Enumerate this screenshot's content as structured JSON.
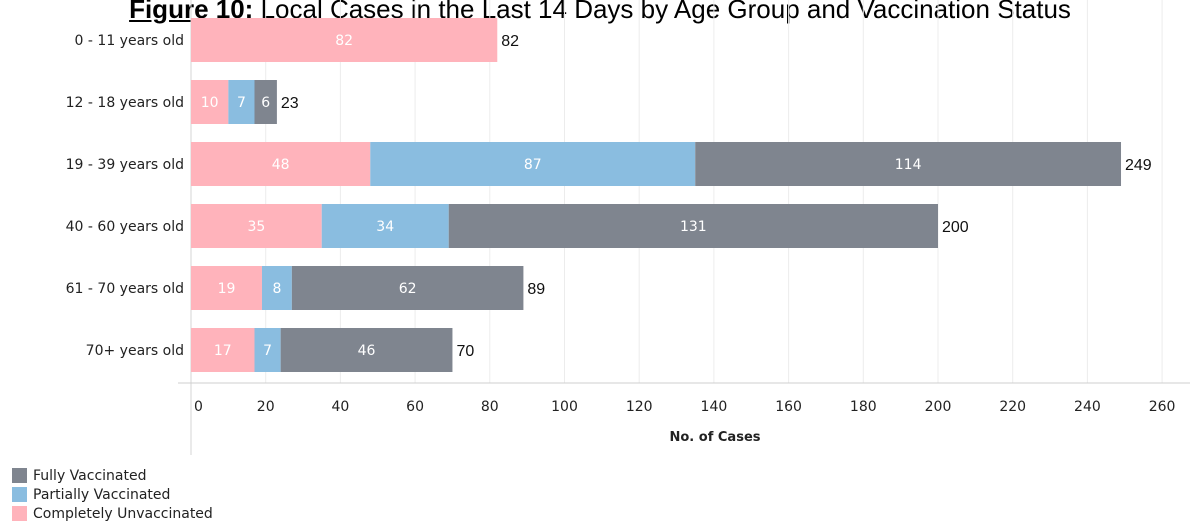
{
  "title": {
    "figure_label": "Figure 10:",
    "text": "Local Cases in the Last 14 Days by Age Group and Vaccination Status"
  },
  "chart_data": {
    "type": "bar",
    "orientation": "horizontal",
    "stacked": true,
    "title": "Figure 10: Local Cases in the Last 14 Days by Age Group and Vaccination Status",
    "xlabel": "No. of Cases",
    "ylabel": "",
    "xlim": [
      0,
      260
    ],
    "x_ticks": [
      0,
      20,
      40,
      60,
      80,
      100,
      120,
      140,
      160,
      180,
      200,
      220,
      240,
      260
    ],
    "grid": true,
    "legend_position": "bottom-left",
    "categories": [
      "0 - 11 years old",
      "12 - 18 years old",
      "19 - 39 years old",
      "40 - 60 years old",
      "61 - 70 years old",
      "70+ years old"
    ],
    "series": [
      {
        "name": "Completely Unvaccinated",
        "color": "#FFB3BB",
        "values": [
          82,
          10,
          48,
          35,
          19,
          17
        ]
      },
      {
        "name": "Partially Vaccinated",
        "color": "#8ABDE0",
        "values": [
          0,
          7,
          87,
          34,
          8,
          7
        ]
      },
      {
        "name": "Fully Vaccinated",
        "color": "#7F858F",
        "values": [
          0,
          6,
          114,
          131,
          62,
          46
        ]
      }
    ],
    "totals": [
      82,
      23,
      249,
      200,
      89,
      70
    ]
  },
  "legend": [
    {
      "label": "Fully Vaccinated",
      "color": "#7F858F"
    },
    {
      "label": "Partially Vaccinated",
      "color": "#8ABDE0"
    },
    {
      "label": "Completely Unvaccinated",
      "color": "#FFB3BB"
    }
  ]
}
